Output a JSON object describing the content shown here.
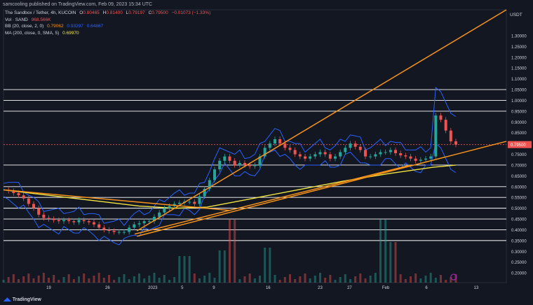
{
  "header": {
    "published": "samcooling published on TradingView.com, Feb 09, 2023 15:34 UTC"
  },
  "legend": {
    "symbol_line": "The Sandbox / Tether, 4h, KUCOIN",
    "ohlc": {
      "o_label": "O",
      "o": "0.80465",
      "h_label": "H",
      "h": "0.81400",
      "l_label": "L",
      "l": "0.79197",
      "c_label": "C",
      "c": "0.79500",
      "chg": "−0.01073 (−1.33%)"
    },
    "vol_label": "Vol · SAND",
    "vol_value": "968.566K",
    "bb_label": "BB (20, close, 2, 0)",
    "bb_values": [
      "0.79062",
      "0.93297",
      "0.64867"
    ],
    "ma_label": "MA (200, close, 0, SMA, 5)",
    "ma_value": "0.69970"
  },
  "colors": {
    "background": "#131722",
    "up": "#26a69a",
    "down": "#ef5350",
    "orange": "#f7931a",
    "ma_yellow": "#f0e442",
    "bb": "#2962ff",
    "hline": "#ffffff",
    "price_tag": "#ef5350"
  },
  "chart_data": {
    "type": "candlestick",
    "title": "The Sandbox / Tether, 4h, KUCOIN",
    "currency_label": "USDT",
    "ylim": [
      0.155,
      1.42
    ],
    "x_tick_labels": [
      "19",
      "26",
      "2023",
      "5",
      "9",
      "16",
      "23",
      "27",
      "Feb",
      "6",
      "13"
    ],
    "y_tick_labels": [
      "1.30000",
      "1.25000",
      "1.20000",
      "1.15000",
      "1.10000",
      "1.05000",
      "1.00000",
      "0.95000",
      "0.90000",
      "0.85000",
      "0.80000",
      "0.75000",
      "0.70000",
      "0.65000",
      "0.60000",
      "0.55000",
      "0.50000",
      "0.45000",
      "0.40000",
      "0.35000",
      "0.30000",
      "0.25000",
      "0.20000"
    ],
    "y_tick_values": [
      1.3,
      1.25,
      1.2,
      1.15,
      1.1,
      1.05,
      1.0,
      0.95,
      0.9,
      0.85,
      0.8,
      0.75,
      0.7,
      0.65,
      0.6,
      0.55,
      0.5,
      0.45,
      0.4,
      0.35,
      0.3,
      0.25,
      0.2
    ],
    "horizontal_levels": [
      1.05,
      1.0,
      0.95,
      0.795,
      0.7,
      0.6,
      0.55,
      0.5,
      0.45,
      0.4,
      0.35
    ],
    "last_price": "0.79500",
    "last_price_value": 0.795,
    "price_path": [
      0.585,
      0.58,
      0.57,
      0.56,
      0.545,
      0.52,
      0.5,
      0.47,
      0.455,
      0.45,
      0.445,
      0.44,
      0.445,
      0.44,
      0.435,
      0.445,
      0.44,
      0.435,
      0.425,
      0.41,
      0.4,
      0.395,
      0.39,
      0.39,
      0.39,
      0.41,
      0.425,
      0.43,
      0.44,
      0.44,
      0.46,
      0.48,
      0.5,
      0.51,
      0.52,
      0.525,
      0.53,
      0.53,
      0.52,
      0.555,
      0.59,
      0.63,
      0.68,
      0.72,
      0.74,
      0.72,
      0.7,
      0.71,
      0.7,
      0.695,
      0.7,
      0.74,
      0.78,
      0.8,
      0.82,
      0.8,
      0.78,
      0.77,
      0.75,
      0.74,
      0.73,
      0.74,
      0.75,
      0.76,
      0.75,
      0.73,
      0.74,
      0.76,
      0.78,
      0.8,
      0.785,
      0.77,
      0.74,
      0.74,
      0.75,
      0.76,
      0.76,
      0.77,
      0.755,
      0.745,
      0.74,
      0.73,
      0.72,
      0.725,
      0.73,
      0.74,
      0.93,
      0.91,
      0.86,
      0.81,
      0.795
    ],
    "ma_200": [
      [
        0,
        0.585
      ],
      [
        0.1,
        0.56
      ],
      [
        0.2,
        0.535
      ],
      [
        0.3,
        0.51
      ],
      [
        0.38,
        0.5
      ],
      [
        0.45,
        0.505
      ],
      [
        0.55,
        0.545
      ],
      [
        0.65,
        0.585
      ],
      [
        0.75,
        0.625
      ],
      [
        0.85,
        0.66
      ],
      [
        0.95,
        0.69
      ],
      [
        1.0,
        0.7
      ]
    ],
    "trend_lines": [
      {
        "name": "upper-channel",
        "from": [
          0.295,
          0.395
        ],
        "to": [
          1.0,
          1.42
        ]
      },
      {
        "name": "mid-support",
        "from": [
          0.295,
          0.37
        ],
        "to": [
          1.0,
          0.81
        ]
      },
      {
        "name": "lower-support",
        "from": [
          0.29,
          0.38
        ],
        "to": [
          0.9,
          0.7
        ]
      },
      {
        "name": "descending",
        "from": [
          0.0,
          0.585
        ],
        "to": [
          0.5,
          0.49
        ]
      }
    ],
    "volume_spikes": [
      [
        0.5,
        1.0
      ],
      [
        0.84,
        1.0
      ],
      [
        0.48,
        0.45
      ],
      [
        0.4,
        0.35
      ],
      [
        0.58,
        0.5
      ],
      [
        0.86,
        0.6
      ]
    ]
  },
  "footer": {
    "brand_icon": "tradingview-logo-icon",
    "brand_text": "TradingView"
  }
}
